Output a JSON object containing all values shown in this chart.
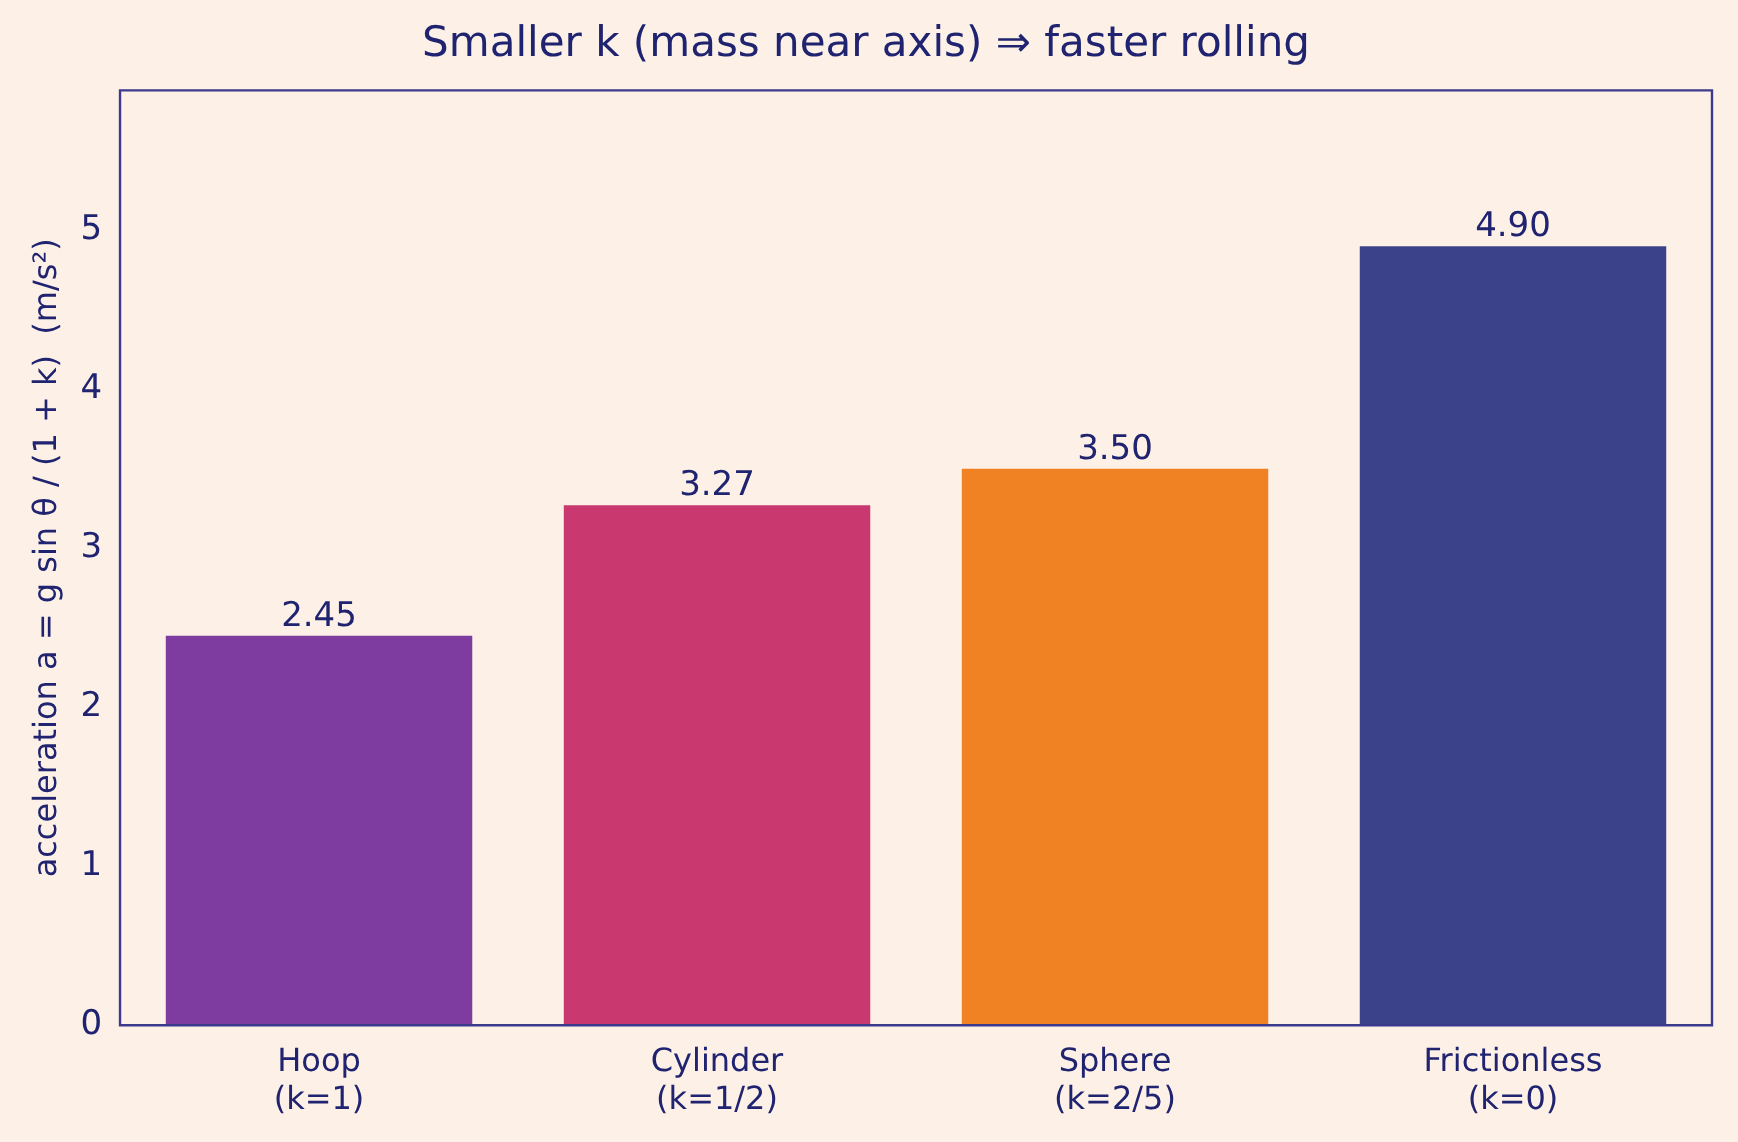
{
  "chart_data": {
    "type": "bar",
    "title": "Smaller k (mass near axis) ⇒ faster rolling",
    "ylabel": "acceleration a = g sin θ / (1 + k)  (m/s²)",
    "categories": [
      "Hoop\n(k=1)",
      "Cylinder\n(k=1/2)",
      "Sphere\n(k=2/5)",
      "Frictionless\n(k=0)"
    ],
    "values": [
      2.45,
      3.27,
      3.5,
      4.9
    ],
    "value_labels": [
      "2.45",
      "3.27",
      "3.50",
      "4.90"
    ],
    "colors": [
      "#7e3ca0",
      "#c9386e",
      "#f08223",
      "#3c428a"
    ],
    "ylim": [
      0,
      5.88
    ],
    "yticks": [
      0,
      1,
      2,
      3,
      4,
      5
    ],
    "grid": false,
    "legend": false
  }
}
